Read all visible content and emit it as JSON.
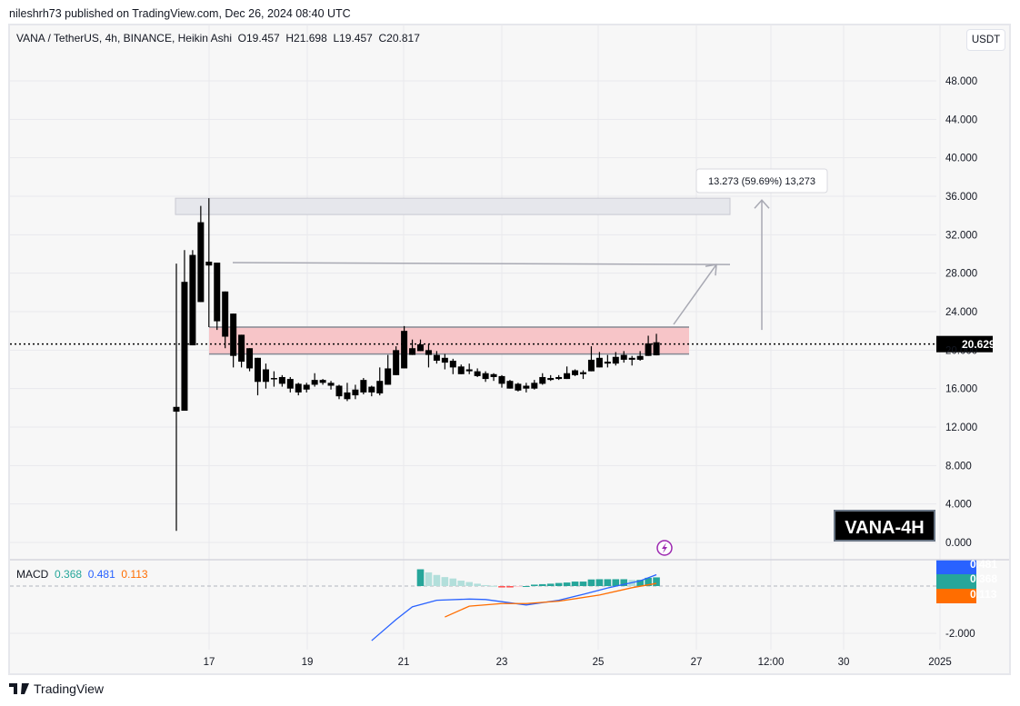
{
  "header": {
    "published": "nileshrh73 published on TradingView.com, Dec 26, 2024 08:40 UTC"
  },
  "legend": {
    "symbol": "VANA / TetherUS, 4h, BINANCE, Heikin Ashi",
    "open": "O19.457",
    "high": "H21.698",
    "low": "L19.457",
    "close": "C20.817"
  },
  "currency_button": "USDT",
  "current_price_label": "20.629",
  "measure_label": "13.273 (59.69%) 13,273",
  "watermark": "VANA-4H",
  "macd": {
    "label": "MACD",
    "hist": "0.368",
    "macd": "0.481",
    "signal": "0.113",
    "colors": {
      "hist_up_strong": "#26a69a",
      "hist_up_weak": "#b2dfdb",
      "hist_down_strong": "#ff5252",
      "hist_down_weak": "#ffcdd2",
      "macd": "#2962ff",
      "signal": "#ff6d00"
    }
  },
  "footer": {
    "brand": "TradingView"
  },
  "chart_data": [
    {
      "type": "candlestick",
      "style": "Heikin Ashi",
      "interval": "4h",
      "ylim": [
        -1,
        50
      ],
      "y_ticks": [
        "48.000",
        "44.000",
        "40.000",
        "36.000",
        "32.000",
        "28.000",
        "24.000",
        "20.000",
        "16.000",
        "12.000",
        "8.000",
        "4.000",
        "0.000"
      ],
      "x_ticks": [
        "17",
        "19",
        "21",
        "23",
        "25",
        "27",
        "12:00",
        "30",
        "2025"
      ],
      "grid": true,
      "current_price": 20.629,
      "candles_ohlc": [
        [
          14.1,
          29.0,
          1.2,
          13.6
        ],
        [
          13.7,
          30.4,
          13.7,
          27.1
        ],
        [
          20.5,
          30.4,
          20.5,
          29.9
        ],
        [
          25.0,
          35.0,
          25.0,
          33.3
        ],
        [
          29.2,
          35.8,
          22.4,
          28.8
        ],
        [
          29.1,
          29.1,
          22.1,
          23.0
        ],
        [
          26.1,
          26.1,
          20.2,
          21.4
        ],
        [
          23.8,
          23.8,
          18.2,
          19.4
        ],
        [
          21.6,
          21.6,
          18.2,
          18.8
        ],
        [
          20.2,
          20.2,
          17.8,
          18.1
        ],
        [
          19.2,
          19.2,
          15.3,
          16.7
        ],
        [
          16.7,
          18.6,
          16.0,
          18.0
        ],
        [
          17.0,
          17.8,
          16.2,
          17.1
        ],
        [
          17.2,
          17.4,
          16.2,
          16.5
        ],
        [
          17.0,
          17.2,
          15.6,
          16.0
        ],
        [
          16.5,
          16.6,
          15.3,
          15.6
        ],
        [
          16.4,
          16.6,
          15.6,
          15.9
        ],
        [
          16.4,
          17.6,
          16.2,
          16.9
        ],
        [
          16.6,
          17.0,
          16.4,
          16.9
        ],
        [
          16.6,
          16.8,
          15.9,
          16.3
        ],
        [
          16.3,
          16.4,
          14.9,
          15.2
        ],
        [
          15.6,
          16.6,
          14.7,
          14.9
        ],
        [
          15.3,
          16.4,
          14.9,
          15.9
        ],
        [
          15.6,
          17.1,
          15.4,
          16.9
        ],
        [
          16.2,
          16.3,
          15.2,
          15.6
        ],
        [
          15.5,
          18.2,
          15.3,
          16.8
        ],
        [
          16.4,
          19.5,
          16.4,
          18.1
        ],
        [
          17.4,
          20.4,
          17.4,
          20.0
        ],
        [
          18.1,
          22.5,
          18.1,
          22.0
        ],
        [
          19.5,
          21.1,
          19.5,
          20.2
        ],
        [
          19.9,
          21.1,
          19.9,
          20.6
        ],
        [
          19.5,
          20.6,
          18.2,
          20.0
        ],
        [
          19.5,
          19.9,
          18.6,
          18.9
        ],
        [
          19.2,
          19.6,
          18.0,
          18.7
        ],
        [
          18.9,
          19.1,
          17.5,
          18.2
        ],
        [
          18.3,
          18.5,
          17.5,
          17.5
        ],
        [
          18.0,
          18.6,
          17.5,
          17.8
        ],
        [
          17.8,
          18.1,
          17.2,
          17.3
        ],
        [
          17.6,
          17.8,
          16.7,
          17.0
        ],
        [
          17.5,
          17.6,
          16.8,
          17.2
        ],
        [
          17.3,
          17.4,
          16.1,
          16.5
        ],
        [
          16.8,
          16.9,
          16.0,
          16.0
        ],
        [
          16.5,
          16.6,
          15.7,
          15.8
        ],
        [
          16.0,
          16.6,
          15.6,
          16.3
        ],
        [
          16.0,
          16.9,
          15.9,
          16.6
        ],
        [
          16.5,
          17.6,
          16.4,
          17.2
        ],
        [
          16.9,
          17.4,
          16.8,
          17.1
        ],
        [
          17.0,
          17.4,
          16.9,
          17.2
        ],
        [
          17.0,
          18.3,
          17.0,
          17.6
        ],
        [
          17.4,
          18.0,
          17.3,
          17.9
        ],
        [
          17.5,
          17.9,
          17.0,
          17.7
        ],
        [
          17.8,
          20.4,
          17.8,
          19.0
        ],
        [
          18.2,
          19.8,
          18.2,
          19.2
        ],
        [
          18.6,
          19.5,
          18.2,
          18.8
        ],
        [
          18.6,
          19.8,
          18.4,
          19.3
        ],
        [
          19.0,
          19.9,
          18.7,
          19.5
        ],
        [
          19.0,
          19.4,
          18.4,
          19.2
        ],
        [
          19.0,
          19.9,
          18.9,
          19.4
        ],
        [
          19.4,
          21.5,
          19.4,
          20.7
        ],
        [
          19.457,
          21.698,
          19.457,
          20.817
        ]
      ]
    },
    {
      "type": "macd",
      "ylim": [
        -2.5,
        0.9
      ],
      "y_ticks": [
        "-2.000"
      ],
      "histogram": [
        0.71,
        0.58,
        0.47,
        0.38,
        0.32,
        0.23,
        0.17,
        0.1,
        0.04,
        0.01,
        -0.06,
        -0.06,
        -0.04,
        0.0,
        0.06,
        0.08,
        0.1,
        0.13,
        0.15,
        0.19,
        0.19,
        0.28,
        0.29,
        0.29,
        0.29,
        0.29,
        0.26,
        0.26,
        0.35,
        0.368
      ],
      "macd_line": [
        [
          24,
          -2.31
        ],
        [
          27,
          -1.42
        ],
        [
          29,
          -0.88
        ],
        [
          32,
          -0.6
        ],
        [
          36,
          -0.55
        ],
        [
          38,
          -0.57
        ],
        [
          43,
          -0.8
        ],
        [
          47,
          -0.6
        ],
        [
          50,
          -0.35
        ],
        [
          53,
          -0.08
        ],
        [
          57,
          0.22
        ],
        [
          59,
          0.481
        ]
      ],
      "signal_line": [
        [
          33,
          -1.31
        ],
        [
          36,
          -0.85
        ],
        [
          40,
          -0.74
        ],
        [
          43,
          -0.74
        ],
        [
          47,
          -0.64
        ],
        [
          52,
          -0.38
        ],
        [
          56,
          -0.07
        ],
        [
          59,
          0.113
        ]
      ]
    }
  ]
}
